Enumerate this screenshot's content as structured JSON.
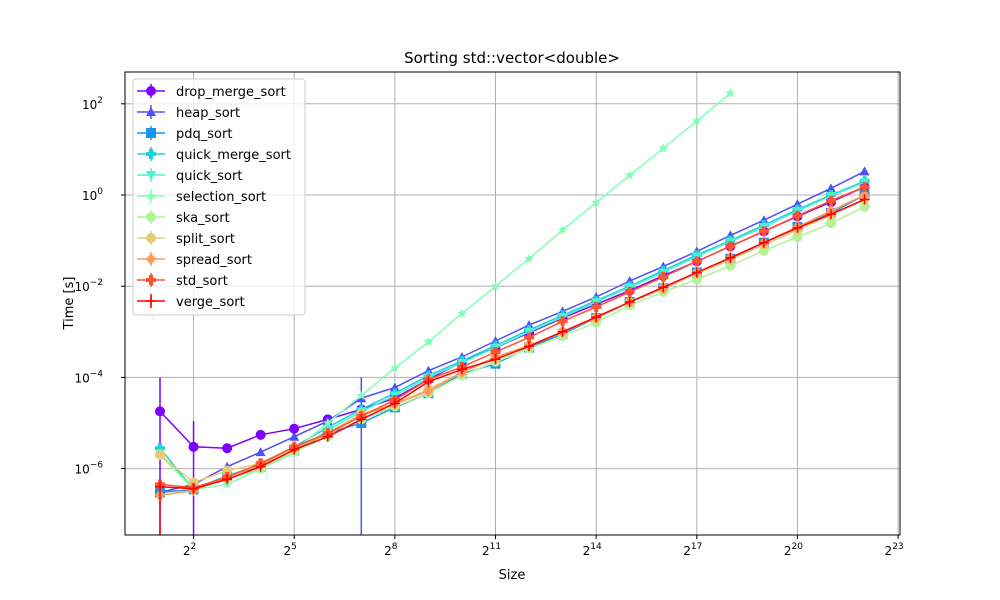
{
  "chart_data": {
    "type": "line",
    "title": "Sorting std::vector<double>",
    "xlabel": "Size",
    "ylabel": "Time [s]",
    "xscale": "log2",
    "yscale": "log10",
    "x_ticks": [
      "2^2",
      "2^5",
      "2^8",
      "2^11",
      "2^14",
      "2^17",
      "2^20",
      "2^23"
    ],
    "y_ticks": [
      "10^-6",
      "10^-4",
      "10^-2",
      "10^0",
      "10^2"
    ],
    "grid": true,
    "legend_position": "upper left",
    "x": [
      2,
      4,
      8,
      16,
      32,
      64,
      128,
      256,
      512,
      1024,
      2048,
      4096,
      8192,
      16384,
      32768,
      65536,
      131072,
      262144,
      524288,
      1048576,
      2097152,
      4194304
    ],
    "series": [
      {
        "name": "drop_merge_sort",
        "color": "#8000ff",
        "marker": "circle",
        "values": [
          1.8e-05,
          3e-06,
          2.8e-06,
          5.5e-06,
          7.5e-06,
          1.2e-05,
          2e-05,
          3.5e-05,
          9e-05,
          0.00022,
          0.00045,
          0.00095,
          0.002,
          0.004,
          0.008,
          0.017,
          0.035,
          0.075,
          0.16,
          0.34,
          0.7,
          1.5
        ],
        "err_low": [
          1e-08,
          1e-08,
          null,
          null,
          null,
          null,
          null,
          null,
          null,
          null,
          null,
          null,
          null,
          null,
          null,
          null,
          null,
          null,
          null,
          null,
          null,
          null
        ],
        "err_high": [
          0.0001,
          1.1e-05,
          null,
          null,
          null,
          null,
          null,
          null,
          null,
          null,
          null,
          null,
          null,
          null,
          null,
          null,
          null,
          null,
          null,
          null,
          null,
          null
        ]
      },
      {
        "name": "heap_sort",
        "color": "#4f4ffb",
        "marker": "triangle",
        "values": [
          3e-07,
          4.5e-07,
          1.1e-06,
          2.3e-06,
          5e-06,
          1.1e-05,
          3.5e-05,
          6e-05,
          0.00014,
          0.00028,
          0.00063,
          0.0014,
          0.0028,
          0.0058,
          0.013,
          0.027,
          0.058,
          0.13,
          0.28,
          0.63,
          1.4,
          3.3
        ],
        "err_low": [
          null,
          null,
          null,
          null,
          null,
          null,
          1e-08,
          null,
          null,
          null,
          null,
          null,
          null,
          null,
          null,
          null,
          null,
          null,
          null,
          null,
          null,
          null
        ],
        "err_high": [
          null,
          null,
          null,
          null,
          null,
          null,
          0.0001,
          null,
          null,
          null,
          null,
          null,
          null,
          null,
          null,
          null,
          null,
          null,
          null,
          null,
          null,
          null
        ]
      },
      {
        "name": "pdq_sort",
        "color": "#1996f3",
        "marker": "square",
        "values": [
          3e-07,
          3.5e-07,
          7e-07,
          1.1e-06,
          2.5e-06,
          6e-06,
          1e-05,
          2.2e-05,
          4.5e-05,
          0.00012,
          0.0002,
          0.00045,
          0.0009,
          0.002,
          0.0045,
          0.009,
          0.02,
          0.04,
          0.09,
          0.2,
          0.4,
          1.0
        ],
        "err_low": [],
        "err_high": []
      },
      {
        "name": "quick_merge_sort",
        "color": "#1ccfe0",
        "marker": "plus-filled",
        "values": [
          2.8e-06,
          3.5e-07,
          7e-07,
          1.2e-06,
          3e-06,
          8e-06,
          2e-05,
          4.5e-05,
          0.00011,
          0.00023,
          0.0005,
          0.0011,
          0.0023,
          0.0048,
          0.01,
          0.022,
          0.048,
          0.1,
          0.22,
          0.48,
          1.0,
          2.0
        ],
        "err_low": [],
        "err_high": []
      },
      {
        "name": "quick_sort",
        "color": "#4cf2ce",
        "marker": "triangle-down",
        "values": [
          2.2e-06,
          3.5e-07,
          6e-07,
          1e-06,
          2.2e-06,
          7e-06,
          1.8e-05,
          4e-05,
          0.0001,
          0.00021,
          0.00045,
          0.001,
          0.0021,
          0.0045,
          0.0095,
          0.02,
          0.045,
          0.095,
          0.2,
          0.45,
          0.95,
          1.9
        ],
        "err_low": [],
        "err_high": []
      },
      {
        "name": "selection_sort",
        "color": "#80ffb4",
        "marker": "star",
        "values": [
          2e-06,
          3.5e-07,
          4.5e-07,
          1e-06,
          2.5e-06,
          1e-05,
          4e-05,
          0.00016,
          0.0006,
          0.0025,
          0.01,
          0.04,
          0.17,
          0.68,
          2.7,
          10.5,
          42,
          170
        ],
        "err_low": [],
        "err_high": []
      },
      {
        "name": "ska_sort",
        "color": "#b2f396",
        "marker": "circle",
        "values": [
          2e-06,
          3.5e-07,
          6e-07,
          1e-06,
          2.3e-06,
          5e-06,
          1.2e-05,
          2.3e-05,
          4.5e-05,
          0.00011,
          0.00022,
          0.00043,
          0.0008,
          0.0016,
          0.0038,
          0.0075,
          0.014,
          0.028,
          0.06,
          0.12,
          0.24,
          0.55
        ],
        "err_low": [],
        "err_high": []
      },
      {
        "name": "split_sort",
        "color": "#e6cd73",
        "marker": "hexagon",
        "values": [
          2e-06,
          5e-07,
          9e-07,
          1.3e-06,
          2.8e-06,
          6e-06,
          1.6e-05,
          2.6e-05,
          5.5e-05,
          0.00013,
          0.00026,
          0.0005,
          0.001,
          0.002,
          0.0045,
          0.009,
          0.019,
          0.038,
          0.08,
          0.17,
          0.36,
          0.8
        ],
        "err_low": [],
        "err_high": []
      },
      {
        "name": "spread_sort",
        "color": "#ff9a5a",
        "marker": "diamond",
        "values": [
          2.6e-07,
          3.3e-07,
          6.5e-07,
          1.2e-06,
          3e-06,
          5.5e-06,
          1.5e-05,
          2.6e-05,
          5e-05,
          0.00013,
          0.00028,
          0.0005,
          0.001,
          0.002,
          0.0045,
          0.009,
          0.02,
          0.042,
          0.09,
          0.2,
          0.45,
          1.0
        ],
        "err_low": [],
        "err_high": []
      },
      {
        "name": "std_sort",
        "color": "#ff5230",
        "marker": "plus-filled",
        "values": [
          4.5e-07,
          3.8e-07,
          6.5e-07,
          1.3e-06,
          3e-06,
          6e-06,
          1.4e-05,
          3.2e-05,
          9e-05,
          0.00017,
          0.00036,
          0.00075,
          0.0017,
          0.0035,
          0.0075,
          0.016,
          0.035,
          0.075,
          0.16,
          0.35,
          0.75,
          1.5
        ],
        "err_low": [],
        "err_high": []
      },
      {
        "name": "verge_sort",
        "color": "#ff0000",
        "marker": "plus",
        "values": [
          4e-07,
          3.6e-07,
          5.8e-07,
          1.1e-06,
          2.6e-06,
          5e-06,
          1.2e-05,
          2.7e-05,
          8e-05,
          0.00015,
          0.00025,
          0.00048,
          0.001,
          0.0021,
          0.0045,
          0.0095,
          0.02,
          0.042,
          0.09,
          0.19,
          0.38,
          0.8
        ],
        "err_low": [
          1e-08
        ],
        "err_high": [
          4.5e-07
        ]
      }
    ]
  }
}
